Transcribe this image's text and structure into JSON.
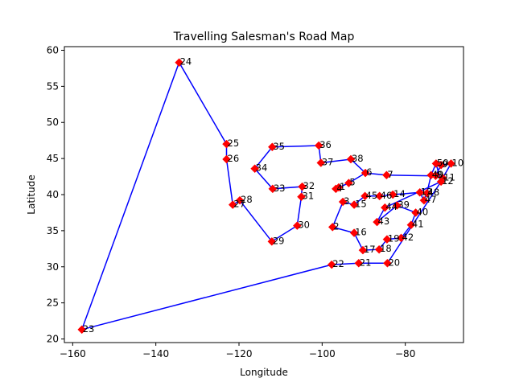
{
  "chart_data": {
    "type": "line",
    "title": "Travelling Salesman's Road Map",
    "xlabel": "Longitude",
    "ylabel": "Latitude",
    "xlim": [
      -162,
      -66
    ],
    "ylim": [
      19.5,
      60.5
    ],
    "xticks": [
      -160,
      -140,
      -120,
      -100,
      -80
    ],
    "yticks": [
      20,
      25,
      30,
      35,
      40,
      45,
      50,
      55,
      60
    ],
    "grid": false,
    "line_color": "#0000ff",
    "marker_color": "#ff0000",
    "cities": [
      {
        "id": "1",
        "x": -96.0,
        "y": 41.0
      },
      {
        "id": "2",
        "x": -97.5,
        "y": 35.5
      },
      {
        "id": "3",
        "x": -95.0,
        "y": 39.0
      },
      {
        "id": "4",
        "x": -96.7,
        "y": 40.8
      },
      {
        "id": "5",
        "x": -93.6,
        "y": 41.6
      },
      {
        "id": "6",
        "x": -89.6,
        "y": 43.0
      },
      {
        "id": "7",
        "x": -84.5,
        "y": 42.7
      },
      {
        "id": "8",
        "x": -72.7,
        "y": 42.6
      },
      {
        "id": "9",
        "x": -71.4,
        "y": 44.1
      },
      {
        "id": "10",
        "x": -69.0,
        "y": 44.3
      },
      {
        "id": "11",
        "x": -71.0,
        "y": 42.3
      },
      {
        "id": "12",
        "x": -71.4,
        "y": 41.8
      },
      {
        "id": "13",
        "x": -76.5,
        "y": 40.3
      },
      {
        "id": "14",
        "x": -83.0,
        "y": 40.0
      },
      {
        "id": "15",
        "x": -92.3,
        "y": 38.6
      },
      {
        "id": "16",
        "x": -92.3,
        "y": 34.7
      },
      {
        "id": "17",
        "x": -90.2,
        "y": 32.3
      },
      {
        "id": "18",
        "x": -86.3,
        "y": 32.4
      },
      {
        "id": "19",
        "x": -84.4,
        "y": 33.8
      },
      {
        "id": "20",
        "x": -84.3,
        "y": 30.5
      },
      {
        "id": "21",
        "x": -91.2,
        "y": 30.5
      },
      {
        "id": "22",
        "x": -97.7,
        "y": 30.3
      },
      {
        "id": "23",
        "x": -157.8,
        "y": 21.3
      },
      {
        "id": "24",
        "x": -134.4,
        "y": 58.3
      },
      {
        "id": "25",
        "x": -123.0,
        "y": 47.0
      },
      {
        "id": "26",
        "x": -123.0,
        "y": 44.9
      },
      {
        "id": "27",
        "x": -121.5,
        "y": 38.6
      },
      {
        "id": "28",
        "x": -119.8,
        "y": 39.2
      },
      {
        "id": "29",
        "x": -112.1,
        "y": 33.5
      },
      {
        "id": "30",
        "x": -106.0,
        "y": 35.7
      },
      {
        "id": "31",
        "x": -105.0,
        "y": 39.7
      },
      {
        "id": "32",
        "x": -104.8,
        "y": 41.1
      },
      {
        "id": "33",
        "x": -111.9,
        "y": 40.8
      },
      {
        "id": "34",
        "x": -116.2,
        "y": 43.6
      },
      {
        "id": "35",
        "x": -112.0,
        "y": 46.6
      },
      {
        "id": "36",
        "x": -100.8,
        "y": 46.8
      },
      {
        "id": "37",
        "x": -100.3,
        "y": 44.4
      },
      {
        "id": "38",
        "x": -93.1,
        "y": 44.9
      },
      {
        "id": "39",
        "x": -82.0,
        "y": 38.5
      },
      {
        "id": "40",
        "x": -77.5,
        "y": 37.5
      },
      {
        "id": "41",
        "x": -78.6,
        "y": 35.8
      },
      {
        "id": "42",
        "x": -81.0,
        "y": 34.0
      },
      {
        "id": "43",
        "x": -86.8,
        "y": 36.2
      },
      {
        "id": "44",
        "x": -84.9,
        "y": 38.2
      },
      {
        "id": "45",
        "x": -89.7,
        "y": 39.8
      },
      {
        "id": "46",
        "x": -86.2,
        "y": 39.8
      },
      {
        "id": "47",
        "x": -75.5,
        "y": 39.2
      },
      {
        "id": "48",
        "x": -74.8,
        "y": 40.2
      },
      {
        "id": "49",
        "x": -73.8,
        "y": 42.7
      },
      {
        "id": "50",
        "x": -72.6,
        "y": 44.3
      }
    ],
    "route": [
      "1",
      "4",
      "5",
      "6",
      "7",
      "8",
      "9",
      "10",
      "11",
      "12",
      "50",
      "49",
      "48",
      "47",
      "13",
      "14",
      "46",
      "45",
      "15",
      "3",
      "2",
      "16",
      "17",
      "18",
      "19",
      "42",
      "41",
      "40",
      "39",
      "43",
      "44",
      "12",
      "20",
      "21",
      "22",
      "23",
      "24",
      "25",
      "26",
      "27",
      "28",
      "29",
      "30",
      "31",
      "32",
      "33",
      "34",
      "35",
      "36",
      "37",
      "38",
      "6"
    ]
  }
}
